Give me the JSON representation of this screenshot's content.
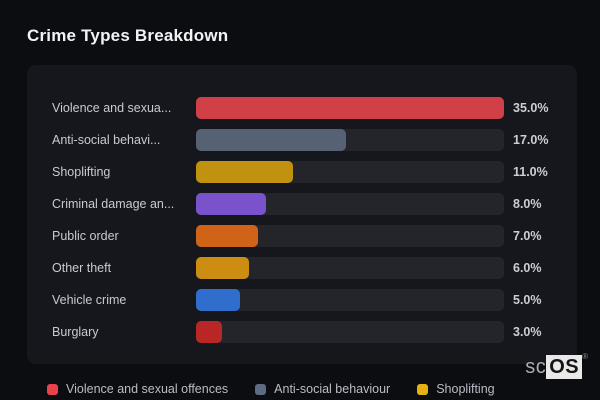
{
  "page_title": "Crime Types Breakdown",
  "chart_data": {
    "type": "bar",
    "orientation": "horizontal",
    "title": "Crime Types Breakdown",
    "categories": [
      "Violence and sexua...",
      "Anti-social behavi...",
      "Shoplifting",
      "Criminal damage an...",
      "Public order",
      "Other theft",
      "Vehicle crime",
      "Burglary"
    ],
    "values": [
      35.0,
      17.0,
      11.0,
      8.0,
      7.0,
      6.0,
      5.0,
      3.0
    ],
    "value_labels": [
      "35.0%",
      "17.0%",
      "11.0%",
      "8.0%",
      "7.0%",
      "6.0%",
      "5.0%",
      "3.0%"
    ],
    "bar_colors": [
      "#d13f47",
      "#566173",
      "#c1920f",
      "#7a52cc",
      "#cf6418",
      "#cd8d13",
      "#306ecd",
      "#b92626"
    ],
    "xlim": [
      0,
      35
    ],
    "grid": false,
    "legend_position": "bottom"
  },
  "legend": {
    "items": [
      {
        "label": "Violence and sexual offences",
        "color": "#e8424d"
      },
      {
        "label": "Anti-social behaviour",
        "color": "#5d6b85"
      },
      {
        "label": "Shoplifting",
        "color": "#e6b112"
      }
    ]
  },
  "watermark": {
    "prefix": "sc",
    "suffix": "OS",
    "registered": "®"
  },
  "colors": {
    "page_background": "#0c0d11",
    "card_background": "#15171c",
    "track_background": "#23252b",
    "title_text": "#f2f3f5",
    "label_text": "#c7cbd1",
    "value_text": "#cbcfd5",
    "legend_text": "#b8bdc5"
  }
}
